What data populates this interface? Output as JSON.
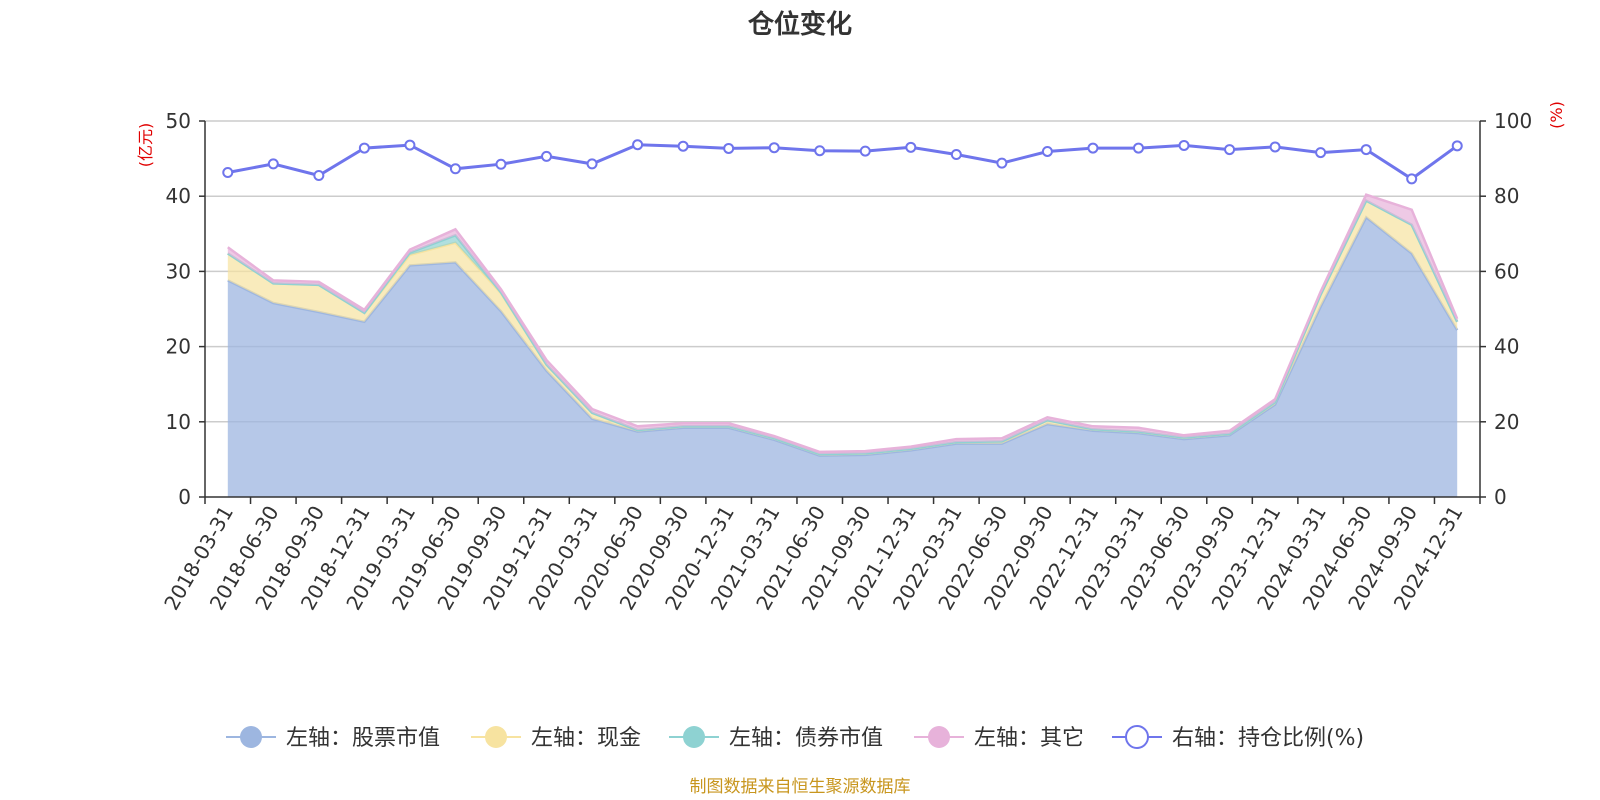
{
  "chart_data": {
    "type": "area",
    "title": "仓位变化",
    "left_axis_unit": "(亿元)",
    "right_axis_unit": "(%)",
    "left_ylim": [
      0,
      50
    ],
    "right_ylim": [
      0,
      100
    ],
    "left_ticks": [
      "0",
      "10",
      "20",
      "30",
      "40",
      "50"
    ],
    "right_ticks": [
      "0",
      "20",
      "40",
      "60",
      "80",
      "100"
    ],
    "grid": true,
    "legend_position": "bottom",
    "categories": [
      "2018-03-31",
      "2018-06-30",
      "2018-09-30",
      "2018-12-31",
      "2019-03-31",
      "2019-06-30",
      "2019-09-30",
      "2019-12-31",
      "2020-03-31",
      "2020-06-30",
      "2020-09-30",
      "2020-12-31",
      "2021-03-31",
      "2021-06-30",
      "2021-09-30",
      "2021-12-31",
      "2022-03-31",
      "2022-06-30",
      "2022-09-30",
      "2022-12-31",
      "2023-03-31",
      "2023-06-30",
      "2023-09-30",
      "2023-12-31",
      "2024-03-31",
      "2024-06-30",
      "2024-09-30",
      "2024-12-31"
    ],
    "series": [
      {
        "name": "左轴：股票市值",
        "axis": "left",
        "stack": true,
        "color": "#9db6e0",
        "values": [
          28.8,
          25.8,
          24.6,
          23.3,
          30.8,
          31.2,
          24.7,
          16.8,
          10.4,
          8.7,
          9.2,
          9.2,
          7.6,
          5.5,
          5.6,
          6.2,
          7.1,
          7.1,
          9.7,
          8.8,
          8.5,
          7.7,
          8.2,
          12.3,
          25.3,
          37.2,
          32.4,
          22.2
        ]
      },
      {
        "name": "左轴：现金",
        "axis": "left",
        "stack": true,
        "color": "#f7e3a0",
        "values": [
          3.6,
          2.6,
          3.6,
          1.2,
          1.4,
          2.6,
          2.4,
          0.8,
          0.8,
          0.2,
          0.2,
          0.2,
          0.2,
          0.2,
          0.2,
          0.2,
          0.2,
          0.3,
          0.5,
          0.2,
          0.2,
          0.2,
          0.2,
          0.3,
          1.6,
          2.2,
          3.8,
          1.1
        ]
      },
      {
        "name": "左轴：债券市值",
        "axis": "left",
        "stack": true,
        "color": "#8ed2d2",
        "values": [
          0,
          0,
          0,
          0,
          0.3,
          1.0,
          0.1,
          0,
          0,
          0,
          0,
          0,
          0,
          0,
          0,
          0,
          0,
          0,
          0,
          0,
          0,
          0,
          0,
          0,
          0,
          0,
          0,
          0
        ]
      },
      {
        "name": "左轴：其它",
        "axis": "left",
        "stack": true,
        "color": "#e7b2da",
        "values": [
          0.8,
          0.4,
          0.4,
          0.4,
          0.4,
          0.8,
          0.4,
          0.6,
          0.5,
          0.5,
          0.4,
          0.4,
          0.3,
          0.3,
          0.3,
          0.3,
          0.4,
          0.4,
          0.4,
          0.4,
          0.5,
          0.3,
          0.4,
          0.4,
          0.4,
          0.8,
          2.0,
          0.4
        ]
      },
      {
        "name": "右轴：持仓比例(%)",
        "axis": "right",
        "stack": false,
        "color": "#6f75ec",
        "values": [
          86.3,
          88.6,
          85.5,
          92.8,
          93.6,
          87.3,
          88.5,
          90.6,
          88.6,
          93.7,
          93.3,
          92.7,
          92.9,
          92.1,
          92.0,
          93.0,
          91.1,
          88.8,
          91.9,
          92.8,
          92.8,
          93.5,
          92.4,
          93.1,
          91.6,
          92.4,
          84.6,
          93.4
        ]
      }
    ]
  },
  "source_text": "制图数据来自恒生聚源数据库"
}
